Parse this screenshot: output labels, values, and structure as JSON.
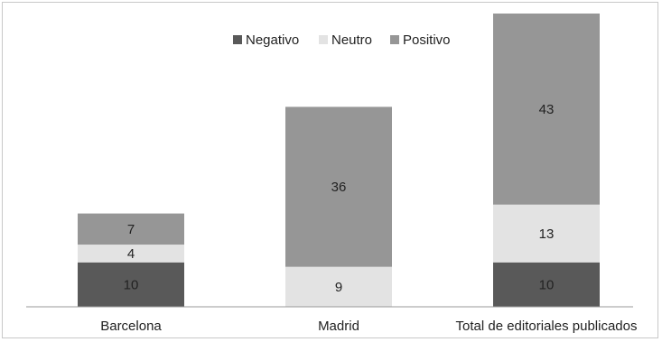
{
  "chart_data": {
    "type": "bar",
    "stacked": true,
    "categories": [
      "Barcelona",
      "Madrid",
      "Total de editoriales publicados"
    ],
    "series": [
      {
        "name": "Negativo",
        "values": [
          10,
          0,
          10
        ],
        "color": "#595959"
      },
      {
        "name": "Neutro",
        "values": [
          4,
          9,
          13
        ],
        "color": "#e3e3e3"
      },
      {
        "name": "Positivo",
        "values": [
          7,
          36,
          43
        ],
        "color": "#969696"
      }
    ],
    "data_labels": [
      [
        "10",
        "",
        "10"
      ],
      [
        "4",
        "9",
        "13"
      ],
      [
        "7",
        "36",
        "43"
      ]
    ],
    "ylim": [
      0,
      66
    ],
    "grid": false,
    "legend_position": "top"
  }
}
